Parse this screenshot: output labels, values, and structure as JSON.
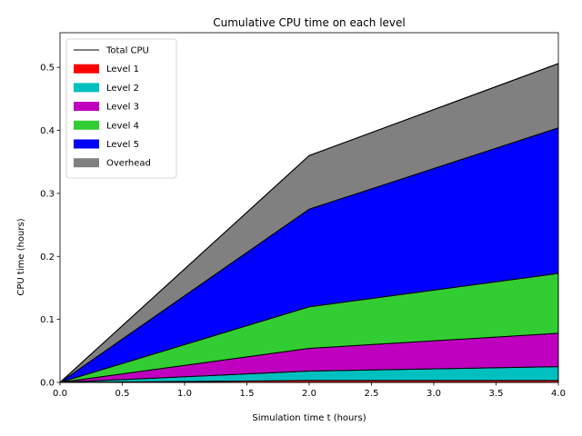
{
  "chart_data": {
    "type": "area",
    "stacked": true,
    "title": "Cumulative CPU time on each level",
    "xlabel": "Simulation time t (hours)",
    "ylabel": "CPU time (hours)",
    "xlim": [
      0,
      4
    ],
    "ylim": [
      0,
      0.555
    ],
    "xticks": [
      0,
      0.5,
      1,
      1.5,
      2,
      2.5,
      3,
      3.5,
      4
    ],
    "xtick_labels": [
      "0.0",
      "0.5",
      "1.0",
      "1.5",
      "2.0",
      "2.5",
      "3.0",
      "3.5",
      "4.0"
    ],
    "yticks": [
      0,
      0.1,
      0.2,
      0.3,
      0.4,
      0.5
    ],
    "ytick_labels": [
      "0.0",
      "0.1",
      "0.2",
      "0.3",
      "0.4",
      "0.5"
    ],
    "grid": false,
    "legend_position": "top-left",
    "x": [
      0,
      2,
      4
    ],
    "series": [
      {
        "name": "Level 1",
        "color": "#ff0000",
        "values": [
          0,
          0.003,
          0.003
        ]
      },
      {
        "name": "Level 2",
        "color": "#00bfbf",
        "values": [
          0,
          0.015,
          0.022
        ]
      },
      {
        "name": "Level 3",
        "color": "#bf00bf",
        "values": [
          0,
          0.036,
          0.053
        ]
      },
      {
        "name": "Level 4",
        "color": "#32cd32",
        "values": [
          0,
          0.066,
          0.095
        ]
      },
      {
        "name": "Level 5",
        "color": "#0000ff",
        "values": [
          0,
          0.155,
          0.231
        ]
      },
      {
        "name": "Overhead",
        "color": "#808080",
        "values": [
          0,
          0.085,
          0.102
        ]
      }
    ],
    "total_line": {
      "name": "Total CPU",
      "color": "#000000",
      "values": [
        0,
        0.36,
        0.506
      ]
    }
  }
}
